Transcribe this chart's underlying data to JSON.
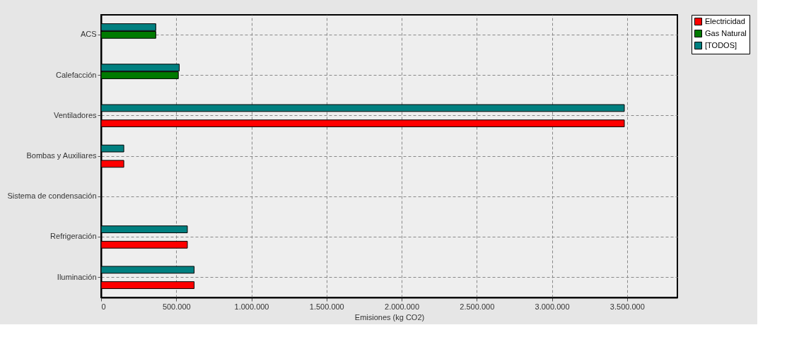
{
  "chart_data": {
    "type": "bar",
    "orientation": "horizontal",
    "xlabel": "Emisiones (kg CO2)",
    "categories": [
      "ACS",
      "Calefacción",
      "Ventiladores",
      "Bombas y Auxiliares",
      "Sistema de condensación",
      "Refrigeración",
      "Iluminación"
    ],
    "series": [
      {
        "name": "Electricidad",
        "color": "#ff0000",
        "values": [
          null,
          null,
          3482000,
          151000,
          null,
          574000,
          619000
        ]
      },
      {
        "name": "Gas Natural",
        "color": "#007a00",
        "values": [
          364000,
          514000,
          null,
          null,
          null,
          null,
          null
        ]
      },
      {
        "name": "[TODOS]",
        "color": "#008080",
        "values": [
          364000,
          520000,
          3482000,
          151000,
          null,
          574000,
          619000
        ]
      }
    ],
    "xlim": [
      0,
      3835000
    ],
    "xticks": [
      {
        "value": 0,
        "label": "0"
      },
      {
        "value": 500000,
        "label": "500.000"
      },
      {
        "value": 1000000,
        "label": "1.000.000"
      },
      {
        "value": 1500000,
        "label": "1.500.000"
      },
      {
        "value": 2000000,
        "label": "2.000.000"
      },
      {
        "value": 2500000,
        "label": "2.500.000"
      },
      {
        "value": 3000000,
        "label": "3.000.000"
      },
      {
        "value": 3500000,
        "label": "3.500.000"
      }
    ],
    "grid": true,
    "legend": "top right"
  }
}
